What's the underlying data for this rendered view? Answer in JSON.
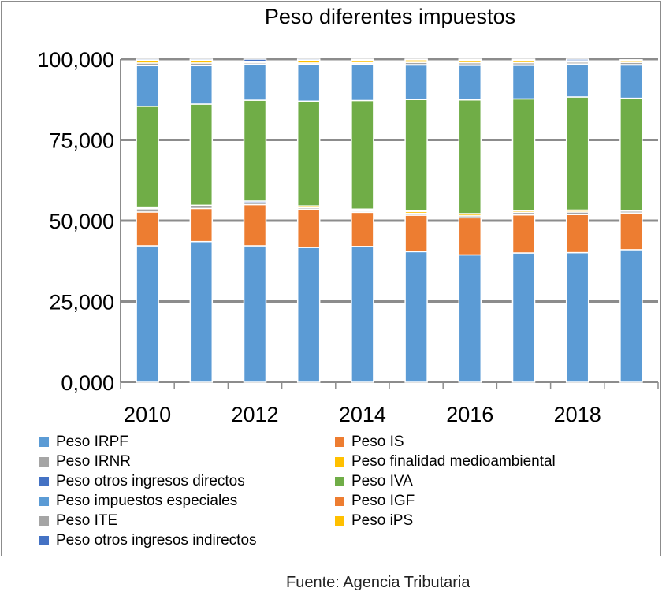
{
  "chart_data": {
    "type": "bar",
    "stacked": true,
    "title": "Peso diferentes impuestos",
    "xlabel": "",
    "ylabel": "",
    "ylim": [
      0,
      100
    ],
    "y_ticks": [
      0,
      25,
      50,
      75,
      100
    ],
    "y_tick_labels": [
      "0,000",
      "25,000",
      "50,000",
      "75,000",
      "100,000"
    ],
    "categories": [
      "2010",
      "2011",
      "2012",
      "2013",
      "2014",
      "2015",
      "2016",
      "2017",
      "2018",
      "2019"
    ],
    "x_tick_labels": [
      "2010",
      "2012",
      "2014",
      "2016",
      "2018"
    ],
    "legend_position": "bottom",
    "series": [
      {
        "name": "Peso IRPF",
        "color": "#5B9BD5",
        "values": [
          42.2,
          43.5,
          42.2,
          41.7,
          42.0,
          40.4,
          39.4,
          40.0,
          40.1,
          41.0
        ]
      },
      {
        "name": "Peso IS",
        "color": "#ED7D31",
        "values": [
          10.5,
          10.3,
          12.8,
          11.8,
          10.6,
          11.3,
          11.5,
          11.8,
          11.8,
          11.4
        ]
      },
      {
        "name": "Peso IRNR",
        "color": "#A5A5A5",
        "values": [
          1.0,
          0.8,
          0.6,
          0.5,
          0.4,
          0.6,
          0.6,
          0.8,
          0.8,
          0.6
        ]
      },
      {
        "name": "Peso finalidad medioambiental",
        "color": "#FFC000",
        "values": [
          0,
          0,
          0,
          0.5,
          0.5,
          0.6,
          0.6,
          0.5,
          0.5,
          0
        ]
      },
      {
        "name": "Peso otros ingresos directos",
        "color": "#4472C4",
        "values": [
          0.3,
          0.2,
          0.5,
          0.1,
          0.1,
          0.1,
          0.1,
          0.1,
          0.1,
          0.1
        ]
      },
      {
        "name": "Peso IVA",
        "color": "#70AD47",
        "values": [
          31.4,
          31.3,
          31.2,
          32.4,
          33.6,
          34.5,
          35.2,
          34.5,
          35.0,
          34.8
        ]
      },
      {
        "name": "Peso impuestos especiales",
        "color": "#5B9BD5",
        "values": [
          12.6,
          11.9,
          11.1,
          11.3,
          11.2,
          10.7,
          10.7,
          10.4,
          10.1,
          10.3
        ]
      },
      {
        "name": "Peso IGF",
        "color": "#ED7D31",
        "values": [
          0.1,
          0.1,
          0.1,
          0.1,
          0.1,
          0.1,
          0.1,
          0.1,
          0.1,
          0.1
        ]
      },
      {
        "name": "Peso ITE",
        "color": "#A5A5A5",
        "values": [
          0.7,
          0.7,
          0.5,
          0.4,
          0.4,
          0.7,
          0.7,
          0.7,
          0.6,
          0.7
        ]
      },
      {
        "name": "Peso iPS",
        "color": "#FFC000",
        "values": [
          0.8,
          0.8,
          0.3,
          0.8,
          0.8,
          0.8,
          0.8,
          0.8,
          0.4,
          0.5
        ]
      },
      {
        "name": "Peso otros ingresos indirectos",
        "color": "#4472C4",
        "values": [
          0.4,
          0.4,
          0.7,
          0.4,
          0.3,
          0.2,
          0.3,
          0.3,
          0.5,
          0.3
        ]
      }
    ]
  },
  "source": "Fuente: Agencia Tributaria"
}
